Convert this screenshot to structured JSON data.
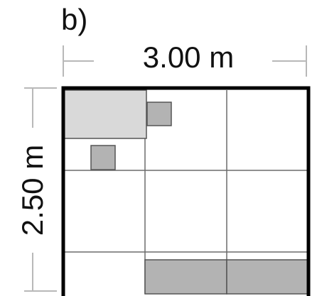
{
  "figure": {
    "panel_label": "b)",
    "width_label": "3.00 m",
    "height_label": "2.50 m"
  },
  "colors": {
    "room_outline": "#000000",
    "grid_line": "#6b6b6b",
    "dimension_line": "#b8b8b8",
    "light_block": "#d9d9d9",
    "dark_block": "#b3b3b3",
    "block_outline": "#555555"
  }
}
